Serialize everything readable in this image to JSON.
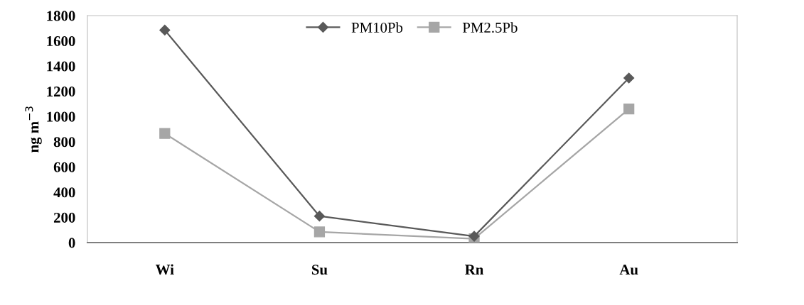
{
  "chart_data": {
    "type": "line",
    "ylabel": "ng m$^{−3}$",
    "categories": [
      "Wi",
      "Su",
      "Rn",
      "Au"
    ],
    "series": [
      {
        "name": "PM10Pb",
        "color": "#595959",
        "marker": "diamond",
        "values": [
          1685,
          210,
          50,
          1305
        ]
      },
      {
        "name": "PM2.5Pb",
        "color": "#a6a6a6",
        "marker": "square",
        "values": [
          865,
          85,
          30,
          1060
        ]
      }
    ],
    "ylim": [
      0,
      1800
    ],
    "yticks": [
      0,
      200,
      400,
      600,
      800,
      1000,
      1200,
      1400,
      1600,
      1800
    ],
    "grid": false,
    "legend": "top",
    "line_style": "solid"
  }
}
